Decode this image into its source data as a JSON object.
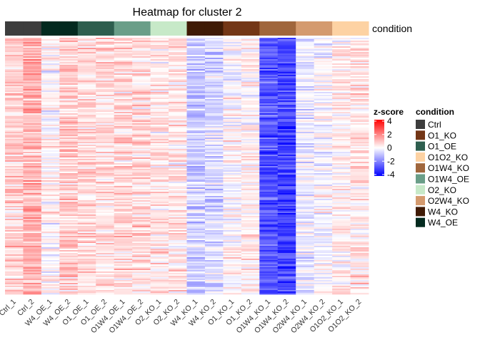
{
  "chart_data": {
    "type": "heatmap",
    "title": "Heatmap for cluster 2",
    "annotation_label": "condition",
    "columns": [
      "Ctrl_1",
      "Ctrl_2",
      "W4_OE_1",
      "W4_OE_2",
      "O1_OE_1",
      "O1_OE_2",
      "O1W4_OE_1",
      "O1W4_OE_2",
      "O2_KO_1",
      "O2_KO_2",
      "W4_KO_1",
      "W4_KO_2",
      "O1_KO_1",
      "O1_KO_2",
      "O1W4_KO_1",
      "O1W4_KO_2",
      "O2W4_KO_1",
      "O2W4_KO_2",
      "O1O2_KO_1",
      "O1O2_KO_2"
    ],
    "column_condition": [
      "Ctrl",
      "Ctrl",
      "W4_OE",
      "W4_OE",
      "O1_OE",
      "O1_OE",
      "O1W4_OE",
      "O1W4_OE",
      "O2_KO",
      "O2_KO",
      "W4_KO",
      "W4_KO",
      "O1_KO",
      "O1_KO",
      "O1W4_KO",
      "O1W4_KO",
      "O2W4_KO",
      "O2W4_KO",
      "O1O2_KO",
      "O1O2_KO"
    ],
    "column_mean_z": [
      0.7,
      1.2,
      0.1,
      0.8,
      0.5,
      0.5,
      0.6,
      0.6,
      0.4,
      0.4,
      -0.8,
      -0.6,
      0.1,
      0.2,
      -2.7,
      -2.9,
      -0.3,
      -0.1,
      0.3,
      0.4
    ],
    "colorscale": {
      "title": "z-score",
      "min": -4,
      "max": 4,
      "ticks": [
        -4,
        -2,
        0,
        2,
        4
      ],
      "tick_labels": [
        "-4",
        "-2",
        "0",
        "2",
        "4"
      ],
      "low": "#0000ff",
      "mid": "#ffffff",
      "high": "#ff0000"
    },
    "legend": {
      "title": "condition",
      "items": [
        {
          "label": "Ctrl",
          "color": "#3d3d3d"
        },
        {
          "label": "O1_KO",
          "color": "#733616"
        },
        {
          "label": "O1_OE",
          "color": "#2e5e4e"
        },
        {
          "label": "O1O2_KO",
          "color": "#fdd2a3"
        },
        {
          "label": "O1W4_KO",
          "color": "#a0663c"
        },
        {
          "label": "O1W4_OE",
          "color": "#6a9e88"
        },
        {
          "label": "O2_KO",
          "color": "#c7e9c8"
        },
        {
          "label": "O2W4_KO",
          "color": "#d49a6e"
        },
        {
          "label": "W4_KO",
          "color": "#3f1a05"
        },
        {
          "label": "W4_OE",
          "color": "#032a1f"
        }
      ]
    }
  }
}
